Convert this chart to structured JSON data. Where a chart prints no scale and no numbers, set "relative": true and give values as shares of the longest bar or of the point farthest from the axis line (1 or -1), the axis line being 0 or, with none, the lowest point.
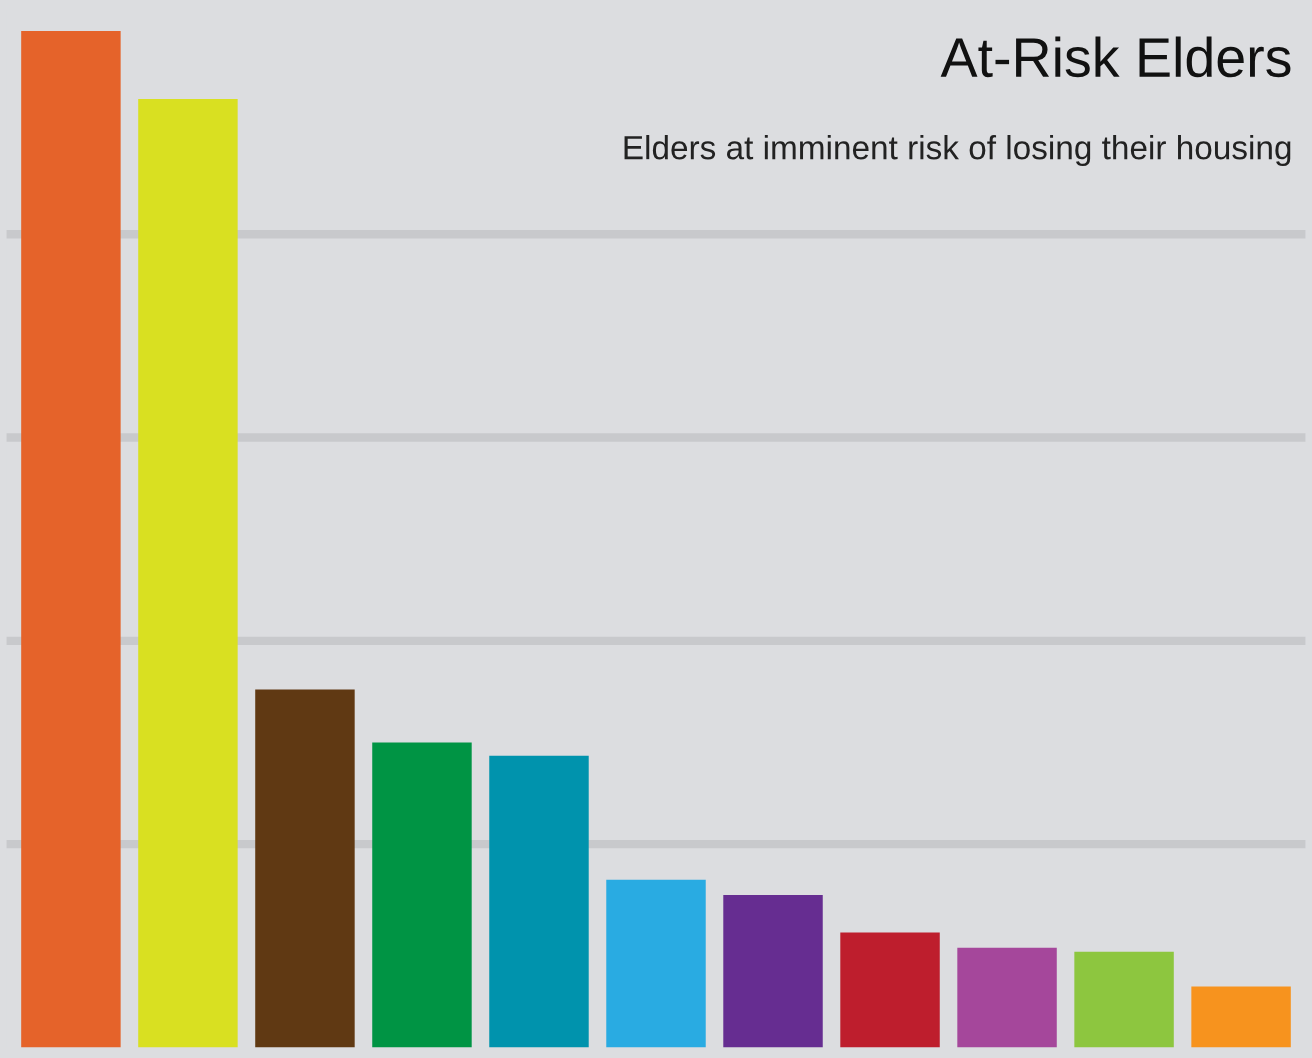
{
  "chart_data": {
    "type": "bar",
    "title": "At-Risk Elders",
    "subtitle": "Elders at imminent risk of losing their housing",
    "categories": [
      null,
      null,
      null,
      null,
      null,
      null,
      null,
      null,
      null,
      null,
      null
    ],
    "values": [
      1,
      0.933,
      0.352,
      0.3,
      0.287,
      0.165,
      0.15,
      0.113,
      0.098,
      0.094,
      0.06
    ],
    "colors": [
      "#e5632a",
      "#d9e021",
      "#603913",
      "#009444",
      "#0093ad",
      "#29abe2",
      "#662d91",
      "#be1e2d",
      "#a5479b",
      "#8dc63f",
      "#f7931e"
    ],
    "relative": true,
    "grid": "y",
    "legend": false
  }
}
